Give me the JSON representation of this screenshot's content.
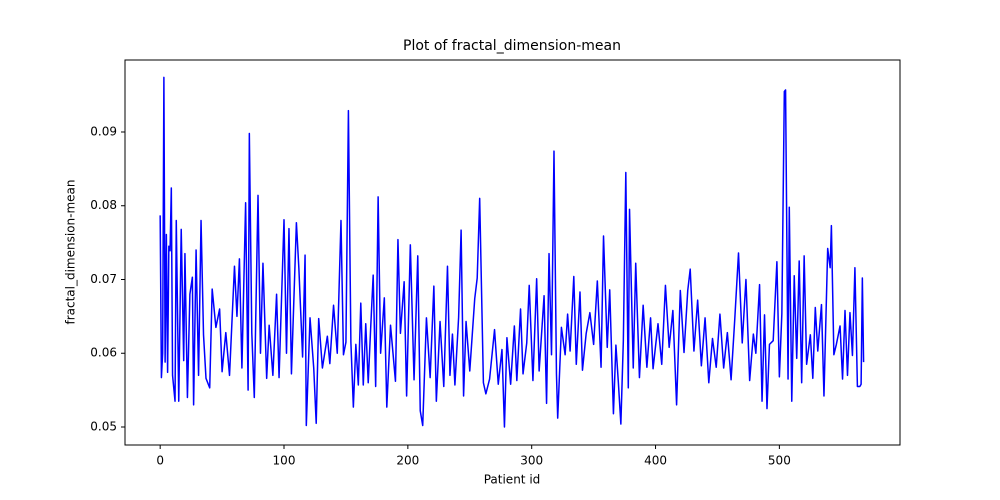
{
  "chart_data": {
    "type": "line",
    "title": "Plot of fractal_dimension-mean",
    "x_label": "Patient id",
    "y_label": "fractal_dimension-mean",
    "series": [
      {
        "color": "#0000ff",
        "x": [
          0,
          1,
          2,
          3,
          4,
          5,
          6,
          7,
          8,
          9,
          10,
          12,
          13,
          15,
          17,
          19,
          20,
          22,
          24,
          26,
          27,
          29,
          31,
          33,
          35,
          37,
          40,
          42,
          45,
          48,
          50,
          53,
          56,
          60,
          62,
          64,
          66,
          69,
          71,
          72,
          74,
          76,
          79,
          81,
          83,
          86,
          88,
          91,
          94,
          96,
          100,
          102,
          104,
          106,
          110,
          112,
          115,
          117,
          118,
          121,
          124,
          126,
          128,
          131,
          135,
          137,
          140,
          143,
          146,
          148,
          150,
          152,
          154,
          156,
          158,
          160,
          162,
          164,
          166,
          168,
          170,
          172,
          174,
          176,
          178,
          181,
          183,
          186,
          190,
          192,
          194,
          197,
          199,
          202,
          205,
          208,
          210,
          212,
          215,
          218,
          221,
          223,
          226,
          229,
          232,
          234,
          236,
          238,
          241,
          243,
          245,
          247,
          250,
          254,
          256,
          258,
          261,
          263,
          266,
          270,
          273,
          276,
          278,
          280,
          283,
          286,
          288,
          291,
          293,
          296,
          298,
          301,
          304,
          306,
          310,
          312,
          314,
          316,
          318,
          320,
          321,
          324,
          327,
          329,
          331,
          334,
          336,
          339,
          341,
          344,
          347,
          350,
          353,
          356,
          358,
          361,
          363,
          366,
          368,
          370,
          372,
          374,
          376,
          378,
          379,
          382,
          384,
          387,
          390,
          393,
          396,
          398,
          402,
          405,
          408,
          411,
          414,
          417,
          420,
          423,
          426,
          428,
          431,
          434,
          437,
          440,
          443,
          446,
          449,
          452,
          455,
          458,
          461,
          464,
          467,
          470,
          473,
          476,
          479,
          481,
          484,
          486,
          488,
          490,
          492,
          495,
          498,
          500,
          502,
          504,
          505,
          507,
          508,
          510,
          512,
          514,
          516,
          518,
          520,
          522,
          525,
          527,
          529,
          531,
          534,
          536,
          539,
          541,
          542,
          544,
          546,
          549,
          551,
          553,
          555,
          557,
          559,
          561,
          563,
          565,
          566,
          567,
          568
        ],
        "values": [
          0.0787,
          0.0567,
          0.06,
          0.0974,
          0.0588,
          0.0761,
          0.0574,
          0.0745,
          0.0739,
          0.0824,
          0.057,
          0.0535,
          0.078,
          0.0535,
          0.0768,
          0.059,
          0.0735,
          0.054,
          0.068,
          0.0703,
          0.053,
          0.074,
          0.057,
          0.078,
          0.0625,
          0.0566,
          0.0553,
          0.0687,
          0.0635,
          0.066,
          0.0575,
          0.0628,
          0.057,
          0.0718,
          0.065,
          0.0728,
          0.058,
          0.0804,
          0.055,
          0.0898,
          0.0627,
          0.054,
          0.0814,
          0.06,
          0.0722,
          0.0566,
          0.0638,
          0.057,
          0.068,
          0.0567,
          0.0781,
          0.06,
          0.0769,
          0.0572,
          0.0777,
          0.0715,
          0.0595,
          0.0733,
          0.0502,
          0.0648,
          0.058,
          0.0505,
          0.0647,
          0.058,
          0.0623,
          0.0586,
          0.0665,
          0.06,
          0.078,
          0.0598,
          0.0615,
          0.0929,
          0.0615,
          0.0527,
          0.0612,
          0.0557,
          0.0668,
          0.0557,
          0.064,
          0.056,
          0.0635,
          0.0706,
          0.0555,
          0.0812,
          0.06,
          0.0675,
          0.0527,
          0.0638,
          0.0562,
          0.0754,
          0.0627,
          0.0697,
          0.0542,
          0.0747,
          0.0564,
          0.0732,
          0.0522,
          0.0502,
          0.0648,
          0.0567,
          0.0691,
          0.0535,
          0.0643,
          0.0555,
          0.0718,
          0.057,
          0.0626,
          0.0557,
          0.0649,
          0.0767,
          0.0542,
          0.0643,
          0.0576,
          0.0674,
          0.0702,
          0.081,
          0.056,
          0.0545,
          0.0565,
          0.0632,
          0.0558,
          0.0605,
          0.05,
          0.0621,
          0.0558,
          0.0637,
          0.0563,
          0.066,
          0.0572,
          0.0614,
          0.0692,
          0.0563,
          0.0701,
          0.0576,
          0.0678,
          0.0532,
          0.0735,
          0.0598,
          0.0874,
          0.0572,
          0.0512,
          0.0635,
          0.0598,
          0.0653,
          0.0603,
          0.0704,
          0.0585,
          0.0683,
          0.0577,
          0.0627,
          0.0655,
          0.0612,
          0.0698,
          0.0581,
          0.0759,
          0.0608,
          0.0686,
          0.0518,
          0.0611,
          0.056,
          0.0504,
          0.0617,
          0.0845,
          0.0553,
          0.0795,
          0.058,
          0.0722,
          0.0567,
          0.0665,
          0.0581,
          0.0648,
          0.0579,
          0.064,
          0.0585,
          0.0692,
          0.0608,
          0.0658,
          0.053,
          0.0685,
          0.0601,
          0.0685,
          0.0714,
          0.0603,
          0.0672,
          0.0583,
          0.0648,
          0.056,
          0.062,
          0.0581,
          0.0653,
          0.058,
          0.0628,
          0.0564,
          0.0647,
          0.0736,
          0.0614,
          0.07,
          0.0563,
          0.0626,
          0.06,
          0.0693,
          0.0535,
          0.0652,
          0.0525,
          0.0612,
          0.0617,
          0.0724,
          0.0568,
          0.0654,
          0.0955,
          0.0957,
          0.0565,
          0.0798,
          0.0535,
          0.0705,
          0.0593,
          0.0725,
          0.056,
          0.0732,
          0.0585,
          0.0625,
          0.0566,
          0.0662,
          0.0603,
          0.0666,
          0.0542,
          0.0742,
          0.0716,
          0.0773,
          0.0598,
          0.0612,
          0.0637,
          0.0565,
          0.0658,
          0.057,
          0.0655,
          0.0597,
          0.0716,
          0.0555,
          0.0555,
          0.0558,
          0.0702,
          0.0588
        ]
      }
    ],
    "xlim": [
      -28.4,
      597.4
    ],
    "ylim": [
      0.04756,
      0.09976
    ],
    "xticks": [
      0,
      100,
      200,
      300,
      400,
      500
    ],
    "yticks": [
      0.05,
      0.06,
      0.07,
      0.08,
      0.09
    ]
  }
}
